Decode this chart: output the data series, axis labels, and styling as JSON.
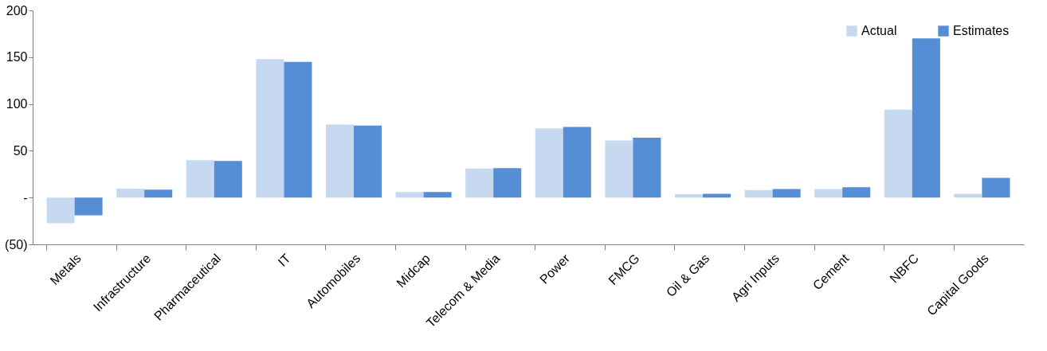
{
  "chart_data": {
    "type": "bar",
    "categories": [
      "Metals",
      "Infrastructure",
      "Pharmaceutical",
      "IT",
      "Automobiles",
      "Midcap",
      "Telecom & Media",
      "Power",
      "FMCG",
      "Oil & Gas",
      "Agri Inputs",
      "Cement",
      "NBFC",
      "Capital Goods"
    ],
    "series": [
      {
        "name": "Actual",
        "color": "#c6d9f1",
        "values": [
          -27.5,
          9.5,
          40,
          148,
          78,
          6,
          31,
          74,
          61,
          3.5,
          8,
          9,
          94,
          4
        ]
      },
      {
        "name": "Estimates",
        "color": "#558ed5",
        "values": [
          -19,
          8.5,
          39,
          145,
          77,
          6,
          31.5,
          75.5,
          64,
          4,
          9,
          11,
          170,
          21
        ]
      }
    ],
    "ylim": [
      -50,
      200
    ],
    "yticks": [
      {
        "value": -50,
        "label": "(50)"
      },
      {
        "value": 0,
        "label": "-"
      },
      50,
      100,
      150,
      200
    ],
    "grid": false,
    "legend": "top right"
  }
}
